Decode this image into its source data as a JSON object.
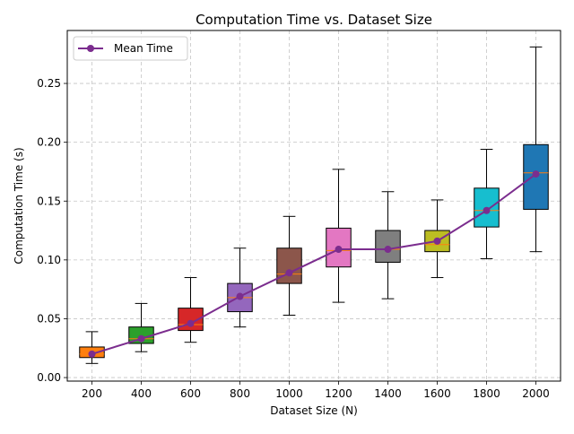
{
  "chart_data": {
    "type": "box",
    "title": "Computation Time vs. Dataset Size",
    "xlabel": "Dataset Size (N)",
    "ylabel": "Computation Time (s)",
    "categories": [
      "200",
      "400",
      "600",
      "800",
      "1000",
      "1200",
      "1400",
      "1600",
      "1800",
      "2000"
    ],
    "yticks": [
      "0.00",
      "0.05",
      "0.10",
      "0.15",
      "0.20",
      "0.25"
    ],
    "ylim": [
      -0.003,
      0.295
    ],
    "grid": true,
    "legend": {
      "position": "upper-left",
      "label": "Mean Time"
    },
    "series_color": "#7b2d8e",
    "box_colors": [
      "#ff7f0e",
      "#2ca02c",
      "#d62728",
      "#9467bd",
      "#8c564b",
      "#e377c2",
      "#7f7f7f",
      "#bcbd22",
      "#17becf",
      "#1f77b4"
    ],
    "median_color": "#ff7f0e",
    "boxes": [
      {
        "category": "200",
        "whisker_low": 0.012,
        "q1": 0.017,
        "median": 0.02,
        "q3": 0.026,
        "whisker_high": 0.039,
        "mean": 0.02
      },
      {
        "category": "400",
        "whisker_low": 0.022,
        "q1": 0.029,
        "median": 0.033,
        "q3": 0.043,
        "whisker_high": 0.063,
        "mean": 0.033
      },
      {
        "category": "600",
        "whisker_low": 0.03,
        "q1": 0.04,
        "median": 0.045,
        "q3": 0.059,
        "whisker_high": 0.085,
        "mean": 0.046
      },
      {
        "category": "800",
        "whisker_low": 0.043,
        "q1": 0.056,
        "median": 0.068,
        "q3": 0.08,
        "whisker_high": 0.11,
        "mean": 0.069
      },
      {
        "category": "1000",
        "whisker_low": 0.053,
        "q1": 0.08,
        "median": 0.088,
        "q3": 0.11,
        "whisker_high": 0.137,
        "mean": 0.089
      },
      {
        "category": "1200",
        "whisker_low": 0.064,
        "q1": 0.094,
        "median": 0.108,
        "q3": 0.127,
        "whisker_high": 0.177,
        "mean": 0.109
      },
      {
        "category": "1400",
        "whisker_low": 0.067,
        "q1": 0.098,
        "median": 0.109,
        "q3": 0.125,
        "whisker_high": 0.158,
        "mean": 0.109
      },
      {
        "category": "1600",
        "whisker_low": 0.085,
        "q1": 0.107,
        "median": 0.113,
        "q3": 0.125,
        "whisker_high": 0.151,
        "mean": 0.116
      },
      {
        "category": "1800",
        "whisker_low": 0.101,
        "q1": 0.128,
        "median": 0.142,
        "q3": 0.161,
        "whisker_high": 0.194,
        "mean": 0.142
      },
      {
        "category": "2000",
        "whisker_low": 0.107,
        "q1": 0.143,
        "median": 0.174,
        "q3": 0.198,
        "whisker_high": 0.281,
        "mean": 0.173
      }
    ]
  }
}
